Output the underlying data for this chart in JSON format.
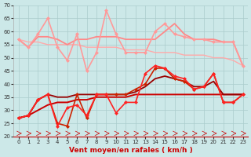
{
  "xlabel": "Vent moyen/en rafales ( km/h )",
  "background_color": "#cce8e8",
  "grid_color": "#aacccc",
  "xlim": [
    -0.5,
    23.5
  ],
  "ylim": [
    20,
    70
  ],
  "yticks": [
    20,
    25,
    30,
    35,
    40,
    45,
    50,
    55,
    60,
    65,
    70
  ],
  "xticks": [
    0,
    1,
    2,
    3,
    4,
    5,
    6,
    7,
    8,
    9,
    10,
    11,
    12,
    13,
    14,
    15,
    16,
    17,
    18,
    19,
    20,
    21,
    22,
    23
  ],
  "series": [
    {
      "y": [
        57,
        56,
        56,
        55,
        55,
        55,
        55,
        54,
        54,
        54,
        54,
        53,
        53,
        53,
        52,
        52,
        52,
        51,
        51,
        51,
        50,
        50,
        49,
        47
      ],
      "color": "#ffaaaa",
      "lw": 1.0,
      "marker": null,
      "zorder": 2
    },
    {
      "y": [
        57,
        54,
        59,
        65,
        54,
        49,
        59,
        45,
        52,
        68,
        59,
        52,
        52,
        52,
        60,
        63,
        59,
        58,
        57,
        57,
        56,
        56,
        56,
        47
      ],
      "color": "#ff9999",
      "lw": 1.2,
      "marker": "D",
      "markersize": 2.5,
      "zorder": 3
    },
    {
      "y": [
        57,
        54,
        58,
        58,
        57,
        55,
        57,
        57,
        58,
        58,
        58,
        57,
        57,
        57,
        57,
        60,
        63,
        59,
        57,
        57,
        57,
        56,
        56,
        47
      ],
      "color": "#ff8888",
      "lw": 1.3,
      "marker": null,
      "zorder": 2
    },
    {
      "y": [
        27,
        28,
        34,
        36,
        24,
        31,
        32,
        28,
        36,
        36,
        29,
        33,
        33,
        44,
        47,
        46,
        43,
        42,
        38,
        39,
        44,
        33,
        33,
        36
      ],
      "color": "#ff2222",
      "lw": 1.2,
      "marker": "D",
      "markersize": 2.5,
      "zorder": 4
    },
    {
      "y": [
        27,
        28,
        30,
        32,
        33,
        33,
        34,
        34,
        35,
        35,
        35,
        35,
        36,
        36,
        36,
        36,
        36,
        36,
        36,
        36,
        36,
        36,
        36,
        36
      ],
      "color": "#cc0000",
      "lw": 1.4,
      "marker": null,
      "zorder": 2
    },
    {
      "y": [
        27,
        28,
        34,
        36,
        25,
        24,
        36,
        27,
        36,
        36,
        36,
        36,
        38,
        40,
        46,
        46,
        42,
        41,
        38,
        39,
        44,
        33,
        33,
        36
      ],
      "color": "#cc2200",
      "lw": 1.2,
      "marker": "D",
      "markersize": 2.5,
      "zorder": 3
    },
    {
      "y": [
        27,
        28,
        34,
        36,
        35,
        35,
        36,
        36,
        36,
        36,
        36,
        36,
        37,
        39,
        42,
        43,
        42,
        41,
        39,
        39,
        41,
        36,
        36,
        36
      ],
      "color": "#990000",
      "lw": 1.3,
      "marker": null,
      "zorder": 2
    }
  ],
  "arrow_color": "#cc0000",
  "xlabel_color": "#cc0000",
  "xlabel_fontsize": 6.5,
  "tick_fontsize": 5
}
